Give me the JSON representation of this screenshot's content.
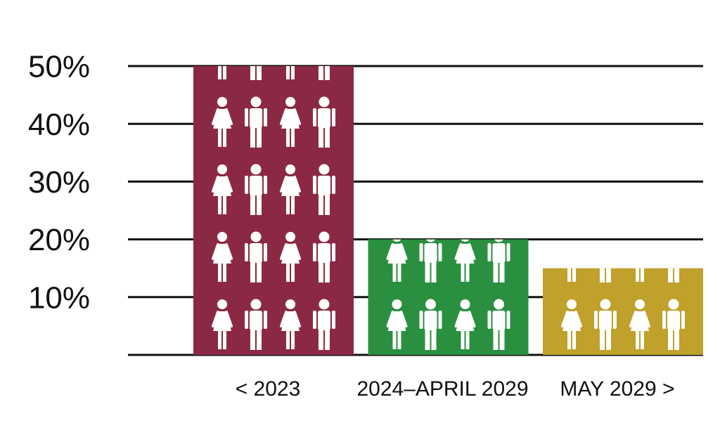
{
  "chart_data": {
    "type": "bar",
    "categories": [
      "< 2023",
      "2024–APRIL 2029",
      "MAY 2029 >"
    ],
    "values": [
      50,
      20,
      15
    ],
    "colors": [
      "#8b2945",
      "#2a8f3f",
      "#bfa12b"
    ],
    "ylim": [
      0,
      50
    ],
    "yticks": [
      {
        "value": 10,
        "label": "10%"
      },
      {
        "value": 20,
        "label": "20%"
      },
      {
        "value": 30,
        "label": "30%"
      },
      {
        "value": 40,
        "label": "40%"
      },
      {
        "value": 50,
        "label": "50%"
      }
    ],
    "grid": true
  }
}
